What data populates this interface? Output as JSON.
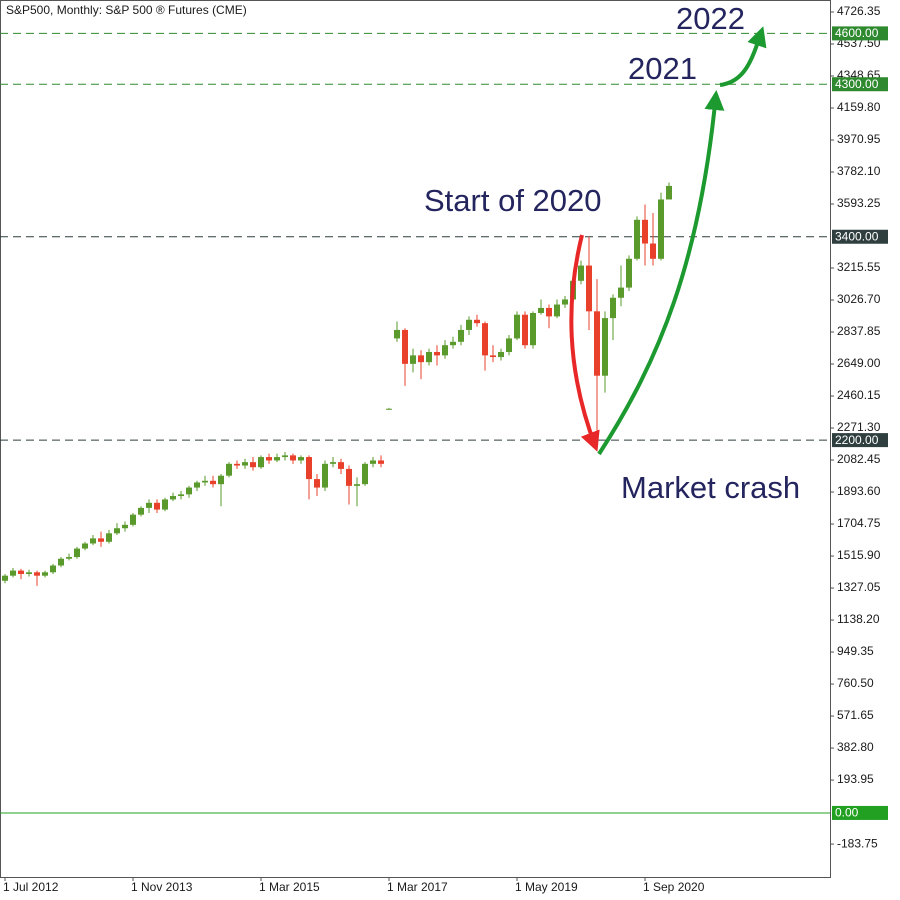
{
  "chart_data": {
    "type": "candlestick",
    "title": "S&P500, Monthly:  S&P 500 ® Futures (CME)",
    "categories": [
      "1 Jul 2012",
      null,
      null,
      null,
      null,
      null,
      null,
      null,
      null,
      null,
      null,
      null,
      null,
      null,
      null,
      null,
      "1 Nov 2013",
      null,
      null,
      null,
      null,
      null,
      null,
      null,
      null,
      null,
      null,
      null,
      null,
      null,
      null,
      null,
      "1 Mar 2015",
      null,
      null,
      null,
      null,
      null,
      null,
      null,
      null,
      null,
      null,
      null,
      null,
      null,
      null,
      null,
      "1 Mar 2017",
      null,
      null,
      null,
      null,
      null,
      null,
      null,
      null,
      null,
      null,
      null,
      null,
      null,
      null,
      null,
      "1 May 2019",
      null,
      null,
      null,
      null,
      null,
      null,
      null,
      null,
      null,
      null,
      null,
      null,
      null,
      null,
      null,
      "1 Sep 2020",
      null,
      null,
      null
    ],
    "open": [
      1370,
      1400,
      1430,
      1410,
      1420,
      1400,
      1420,
      1460,
      1500,
      1510,
      1560,
      1590,
      1620,
      1600,
      1650,
      1680,
      1700,
      1760,
      1800,
      1830,
      1790,
      1850,
      1870,
      1880,
      1920,
      1950,
      1960,
      1940,
      1990,
      2060,
      2050,
      2070,
      2040,
      2100,
      2080,
      2100,
      2110,
      2080,
      2100,
      1970,
      1920,
      2060,
      2070,
      2030,
      1930,
      1940,
      2060,
      2080,
      2385,
      2800,
      2850,
      2650,
      2700,
      2660,
      2720,
      2700,
      2760,
      2780,
      2850,
      2910,
      2890,
      2700,
      2690,
      2720,
      2800,
      2940,
      2760,
      2950,
      2980,
      2930,
      3000,
      3030,
      3140,
      3230,
      2960,
      2580,
      2920,
      3040,
      3100,
      3270,
      3500,
      3360,
      3270,
      3620
    ],
    "high": [
      1410,
      1445,
      1440,
      1435,
      1430,
      1430,
      1470,
      1510,
      1530,
      1570,
      1600,
      1640,
      1660,
      1670,
      1710,
      1720,
      1770,
      1810,
      1850,
      1850,
      1860,
      1890,
      1900,
      1930,
      1960,
      1990,
      1990,
      2000,
      2070,
      2080,
      2090,
      2100,
      2110,
      2120,
      2120,
      2130,
      2120,
      2110,
      2110,
      2000,
      2080,
      2100,
      2090,
      2050,
      1980,
      2070,
      2100,
      2110,
      2390,
      2900,
      2860,
      2740,
      2730,
      2740,
      2760,
      2790,
      2810,
      2880,
      2930,
      2940,
      2900,
      2760,
      2740,
      2820,
      2960,
      2960,
      2960,
      3030,
      3000,
      3030,
      3050,
      3160,
      3260,
      3400,
      3150,
      2960,
      3060,
      3230,
      3290,
      3520,
      3590,
      3540,
      3660,
      3720
    ],
    "low": [
      1355,
      1390,
      1380,
      1395,
      1340,
      1390,
      1410,
      1450,
      1490,
      1500,
      1550,
      1580,
      1570,
      1590,
      1640,
      1660,
      1690,
      1750,
      1770,
      1770,
      1780,
      1840,
      1850,
      1860,
      1900,
      1930,
      1920,
      1810,
      1980,
      2030,
      2030,
      2020,
      2030,
      2060,
      2070,
      2080,
      2060,
      2060,
      1850,
      1870,
      1900,
      2040,
      2000,
      1820,
      1810,
      1930,
      2040,
      2040,
      2380,
      2780,
      2520,
      2600,
      2560,
      2640,
      2640,
      2680,
      2740,
      2760,
      2820,
      2870,
      2610,
      2660,
      2670,
      2700,
      2790,
      2740,
      2740,
      2940,
      2860,
      2920,
      2980,
      3020,
      3120,
      2850,
      2180,
      2480,
      2790,
      2990,
      3080,
      3260,
      3230,
      3230,
      3260,
      3620
    ],
    "close": [
      1400,
      1430,
      1410,
      1420,
      1400,
      1420,
      1460,
      1500,
      1510,
      1560,
      1590,
      1620,
      1600,
      1650,
      1680,
      1700,
      1760,
      1800,
      1830,
      1790,
      1850,
      1870,
      1880,
      1920,
      1950,
      1960,
      1940,
      1990,
      2060,
      2050,
      2070,
      2040,
      2100,
      2080,
      2100,
      2110,
      2080,
      2100,
      1970,
      1920,
      2060,
      2070,
      2030,
      1930,
      1940,
      2060,
      2080,
      2060,
      2385,
      2850,
      2650,
      2700,
      2660,
      2720,
      2700,
      2760,
      2780,
      2850,
      2910,
      2890,
      2700,
      2690,
      2720,
      2800,
      2940,
      2760,
      2950,
      2980,
      2930,
      3000,
      3030,
      3140,
      3230,
      2960,
      2580,
      2920,
      3040,
      3100,
      3270,
      3500,
      3360,
      3270,
      3620,
      3700
    ],
    "up_color": "#5a9a2c",
    "down_color": "#e8402b",
    "ylim": [
      -378,
      4797
    ],
    "yticks": [
      4726.35,
      {
        "value": 4537.5,
        "label": "4537.50"
      },
      4348.65,
      {
        "value": 4159.8,
        "label": "4159.80"
      },
      3970.95,
      {
        "value": 3782.1,
        "label": "3782.10"
      },
      3593.25,
      3215.55,
      {
        "value": 3026.7,
        "label": "3026.70"
      },
      2837.85,
      {
        "value": 2649,
        "label": "2649.00"
      },
      2460.15,
      {
        "value": 2271.3,
        "label": "2271.30"
      },
      2082.45,
      {
        "value": 1893.6,
        "label": "1893.60"
      },
      1704.75,
      {
        "value": 1515.9,
        "label": "1515.90"
      },
      1327.05,
      {
        "value": 1138.2,
        "label": "1138.20"
      },
      949.35,
      {
        "value": 760.5,
        "label": "760.50"
      },
      571.65,
      {
        "value": 382.8,
        "label": "382.80"
      },
      193.95,
      -183.75
    ],
    "levels": [
      {
        "value": 4600,
        "label": "4600.00",
        "color": "#2f8a2f",
        "dashed": true
      },
      {
        "value": 4300,
        "label": "4300.00",
        "color": "#2f8a2f",
        "dashed": true
      },
      {
        "value": 3400,
        "label": "3400.00",
        "color": "#2f3f3f",
        "dashed": true
      },
      {
        "value": 2200,
        "label": "2200.00",
        "color": "#2f3f3f",
        "dashed": true
      },
      {
        "value": 0,
        "label": "0.00",
        "color": "#22a022",
        "dashed": false
      }
    ],
    "annotations": [
      "Start of 2020",
      "Market crash",
      "2021",
      "2022"
    ]
  }
}
